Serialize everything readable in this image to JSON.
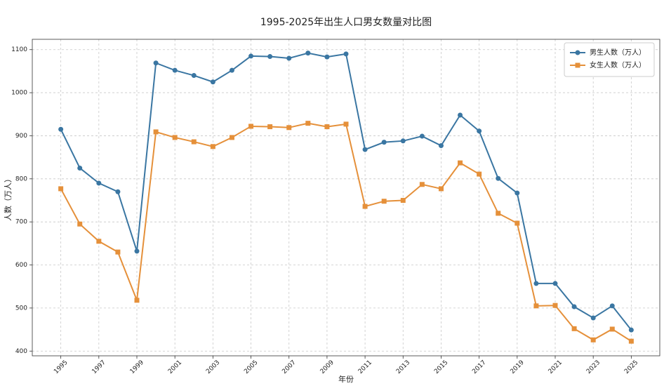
{
  "chart_data": {
    "type": "line",
    "title": "1995-2025年出生人口男女数量对比图",
    "x_label": "年份",
    "y_label": "人数（万人）",
    "x": [
      1995,
      1996,
      1997,
      1998,
      1999,
      2000,
      2001,
      2002,
      2003,
      2004,
      2005,
      2006,
      2007,
      2008,
      2009,
      2010,
      2011,
      2012,
      2013,
      2014,
      2015,
      2016,
      2017,
      2018,
      2019,
      2020,
      2021,
      2022,
      2023,
      2024,
      2025
    ],
    "series": [
      {
        "name": "男生人数（万人）",
        "color": "#3a76a2",
        "marker": "circle",
        "values": [
          915,
          825,
          790,
          770,
          632,
          1069,
          1052,
          1040,
          1025,
          1052,
          1085,
          1084,
          1080,
          1092,
          1083,
          1090,
          868,
          885,
          888,
          899,
          877,
          948,
          911,
          801,
          767,
          557,
          557,
          503,
          477,
          505,
          449
        ]
      },
      {
        "name": "女生人数（万人）",
        "color": "#e5903a",
        "marker": "square",
        "values": [
          777,
          695,
          655,
          630,
          518,
          909,
          896,
          886,
          875,
          896,
          922,
          921,
          919,
          929,
          921,
          927,
          736,
          748,
          750,
          787,
          777,
          837,
          811,
          720,
          697,
          505,
          506,
          452,
          426,
          451,
          423
        ]
      }
    ],
    "xlim": [
      1993.5,
      2026.5
    ],
    "xticks": [
      1995,
      1997,
      1999,
      2001,
      2003,
      2005,
      2007,
      2009,
      2011,
      2013,
      2015,
      2017,
      2019,
      2021,
      2023,
      2025
    ],
    "ylim": [
      389,
      1124
    ],
    "yticks": [
      400,
      500,
      600,
      700,
      800,
      900,
      1000,
      1100
    ],
    "grid": true,
    "legend": "upper right"
  }
}
